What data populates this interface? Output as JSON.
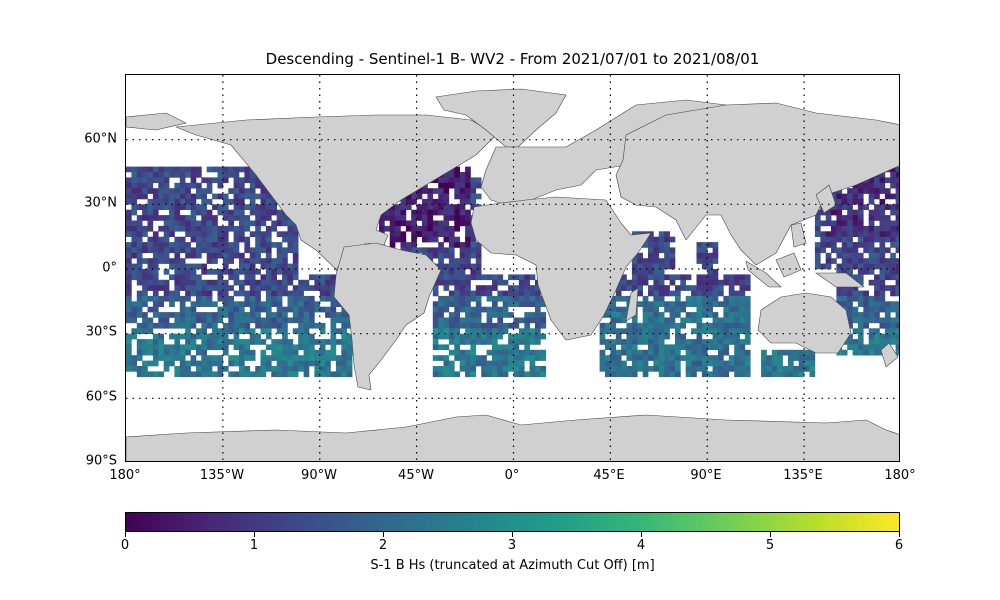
{
  "title": "Descending - Sentinel-1 B- WV2 - From 2021/07/01 to 2021/08/01",
  "map": {
    "projection": "plate-carree",
    "extent": {
      "lon": [
        -180,
        180
      ],
      "lat": [
        -90,
        90
      ]
    },
    "gridlines": "dotted",
    "land_color": "#d0d0d0",
    "lat_labels": [
      "60°N",
      "30°N",
      "0°",
      "30°S",
      "60°S",
      "90°S"
    ],
    "lon_labels": [
      "180°",
      "135°W",
      "90°W",
      "45°W",
      "0°",
      "45°E",
      "90°E",
      "135°E",
      "180°"
    ],
    "data_coverage": {
      "lat": [
        -50,
        50
      ],
      "missing": "white"
    }
  },
  "colorbar": {
    "colormap": "viridis",
    "min": 0,
    "max": 6,
    "ticks": [
      "0",
      "1",
      "2",
      "3",
      "4",
      "5",
      "6"
    ],
    "label": "S-1 B Hs (truncated at Azimuth Cut Off) [m]",
    "colors": [
      "#440154",
      "#482878",
      "#3e4989",
      "#31688e",
      "#26828e",
      "#1f9e89",
      "#35b779",
      "#6ece58",
      "#b5de2b",
      "#fde725"
    ]
  }
}
